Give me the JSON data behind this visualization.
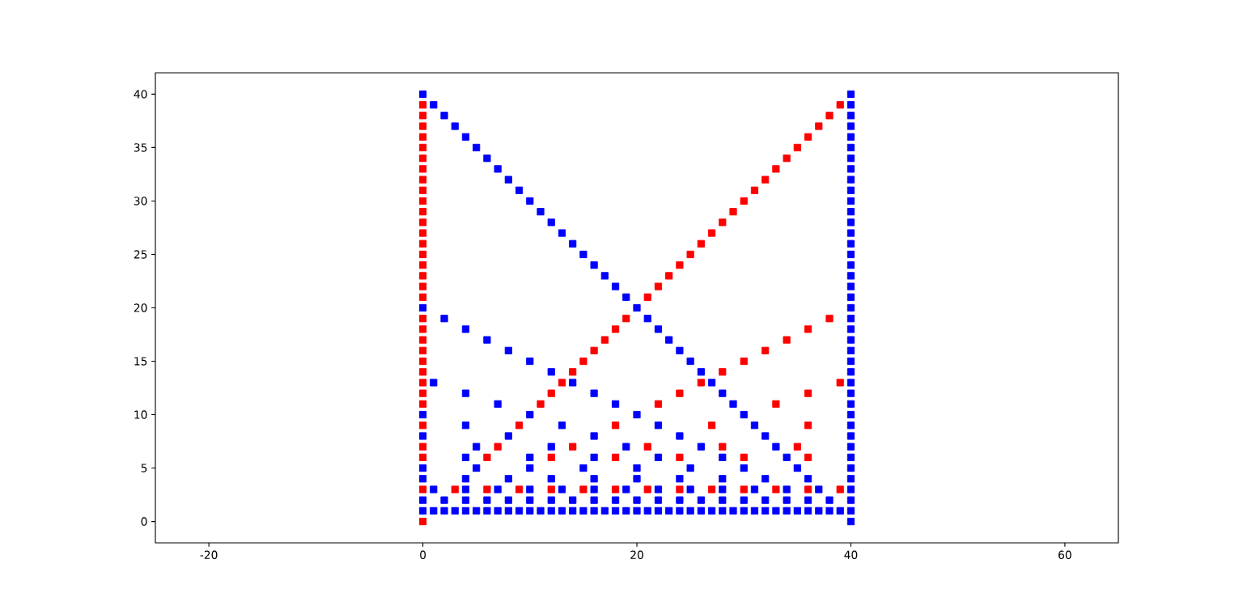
{
  "chart_data": {
    "type": "scatter",
    "marker": "square",
    "xlim": [
      -25,
      65
    ],
    "ylim": [
      -2,
      42
    ],
    "xticks": [
      -20,
      0,
      20,
      40,
      60
    ],
    "yticks": [
      0,
      5,
      10,
      15,
      20,
      25,
      30,
      35,
      40
    ],
    "series": [
      {
        "color": "#ff0000",
        "x": [
          0,
          0,
          0,
          0,
          0,
          0,
          0,
          0,
          0,
          0,
          0,
          0,
          0,
          0,
          0,
          0,
          0,
          0,
          0,
          0,
          0,
          0,
          0,
          0,
          0,
          0,
          0,
          0,
          0,
          0,
          0,
          0,
          0,
          3,
          6,
          6,
          7,
          9,
          9,
          11,
          12,
          12,
          12,
          13,
          14,
          14,
          15,
          15,
          16,
          17,
          18,
          18,
          18,
          18,
          19,
          21,
          21,
          21,
          22,
          22,
          23,
          24,
          24,
          24,
          24,
          25,
          26,
          26,
          27,
          27,
          27,
          28,
          28,
          28,
          29,
          30,
          30,
          30,
          30,
          31,
          32,
          32,
          33,
          33,
          33,
          34,
          34,
          35,
          35,
          36,
          36,
          36,
          36,
          36,
          36,
          37,
          38,
          38,
          39,
          39,
          39
        ],
        "values": [
          0,
          3,
          6,
          7,
          9,
          11,
          12,
          13,
          14,
          15,
          16,
          17,
          18,
          19,
          21,
          22,
          23,
          24,
          25,
          26,
          27,
          28,
          29,
          30,
          31,
          32,
          33,
          34,
          35,
          36,
          37,
          38,
          39,
          3,
          3,
          6,
          7,
          3,
          9,
          11,
          3,
          6,
          12,
          13,
          7,
          14,
          3,
          15,
          16,
          17,
          3,
          6,
          9,
          18,
          19,
          3,
          7,
          21,
          11,
          22,
          23,
          3,
          6,
          12,
          24,
          25,
          13,
          26,
          3,
          9,
          27,
          7,
          14,
          28,
          29,
          3,
          6,
          15,
          30,
          31,
          16,
          32,
          3,
          11,
          33,
          17,
          34,
          7,
          35,
          3,
          6,
          9,
          12,
          18,
          36,
          37,
          19,
          38,
          3,
          13,
          39
        ]
      },
      {
        "color": "#0000ff",
        "x": [
          0,
          0,
          0,
          0,
          0,
          0,
          0,
          0,
          1,
          1,
          1,
          1,
          2,
          2,
          2,
          2,
          3,
          3,
          4,
          4,
          4,
          4,
          4,
          4,
          4,
          4,
          4,
          5,
          5,
          5,
          5,
          6,
          6,
          6,
          6,
          7,
          7,
          7,
          7,
          8,
          8,
          8,
          8,
          8,
          8,
          9,
          9,
          10,
          10,
          10,
          10,
          10,
          10,
          10,
          10,
          11,
          11,
          12,
          12,
          12,
          12,
          12,
          12,
          13,
          13,
          13,
          13,
          14,
          14,
          14,
          14,
          15,
          15,
          15,
          16,
          16,
          16,
          16,
          16,
          16,
          16,
          16,
          17,
          17,
          18,
          18,
          18,
          18,
          19,
          19,
          19,
          19,
          20,
          20,
          20,
          20,
          20,
          20,
          21,
          21,
          22,
          22,
          22,
          22,
          22,
          22,
          23,
          23,
          24,
          24,
          24,
          24,
          24,
          25,
          25,
          25,
          25,
          26,
          26,
          26,
          26,
          27,
          27,
          28,
          28,
          28,
          28,
          28,
          28,
          29,
          29,
          30,
          30,
          30,
          30,
          31,
          31,
          31,
          32,
          32,
          32,
          32,
          33,
          33,
          34,
          34,
          34,
          34,
          35,
          35,
          36,
          36,
          36,
          37,
          37,
          38,
          38,
          39,
          40,
          40,
          40,
          40,
          40,
          40,
          40,
          40,
          40,
          40,
          40,
          40,
          40,
          40,
          40,
          40,
          40,
          40,
          40,
          40,
          40,
          40,
          40,
          40,
          40,
          40,
          40,
          40,
          40,
          40,
          40,
          40,
          40,
          40,
          40,
          40,
          40,
          40,
          40,
          40,
          40
        ],
        "values": [
          1,
          2,
          4,
          5,
          8,
          10,
          20,
          40,
          1,
          3,
          13,
          39,
          1,
          2,
          19,
          38,
          1,
          37,
          1,
          2,
          3,
          4,
          6,
          9,
          12,
          18,
          36,
          1,
          5,
          7,
          35,
          1,
          2,
          17,
          34,
          1,
          3,
          11,
          33,
          1,
          2,
          4,
          8,
          16,
          32,
          1,
          31,
          1,
          2,
          3,
          5,
          6,
          10,
          15,
          30,
          1,
          29,
          1,
          2,
          4,
          7,
          14,
          28,
          1,
          3,
          9,
          27,
          1,
          2,
          13,
          26,
          1,
          5,
          25,
          1,
          2,
          3,
          4,
          6,
          8,
          12,
          24,
          1,
          23,
          1,
          2,
          11,
          22,
          1,
          3,
          7,
          21,
          1,
          2,
          4,
          5,
          10,
          20,
          1,
          19,
          1,
          2,
          3,
          6,
          9,
          18,
          1,
          17,
          1,
          2,
          4,
          8,
          16,
          1,
          3,
          5,
          15,
          1,
          2,
          7,
          14,
          1,
          13,
          1,
          2,
          3,
          4,
          6,
          12,
          1,
          11,
          1,
          2,
          5,
          10,
          1,
          3,
          9,
          1,
          2,
          4,
          8,
          1,
          7,
          1,
          2,
          3,
          6,
          1,
          5,
          1,
          2,
          4,
          1,
          3,
          1,
          2,
          1,
          0,
          1,
          2,
          3,
          4,
          5,
          6,
          7,
          8,
          9,
          10,
          11,
          12,
          13,
          14,
          15,
          16,
          17,
          18,
          19,
          20,
          21,
          22,
          23,
          24,
          25,
          26,
          27,
          28,
          29,
          30,
          31,
          32,
          33,
          34,
          35,
          36,
          37,
          38,
          39,
          40
        ]
      }
    ]
  }
}
